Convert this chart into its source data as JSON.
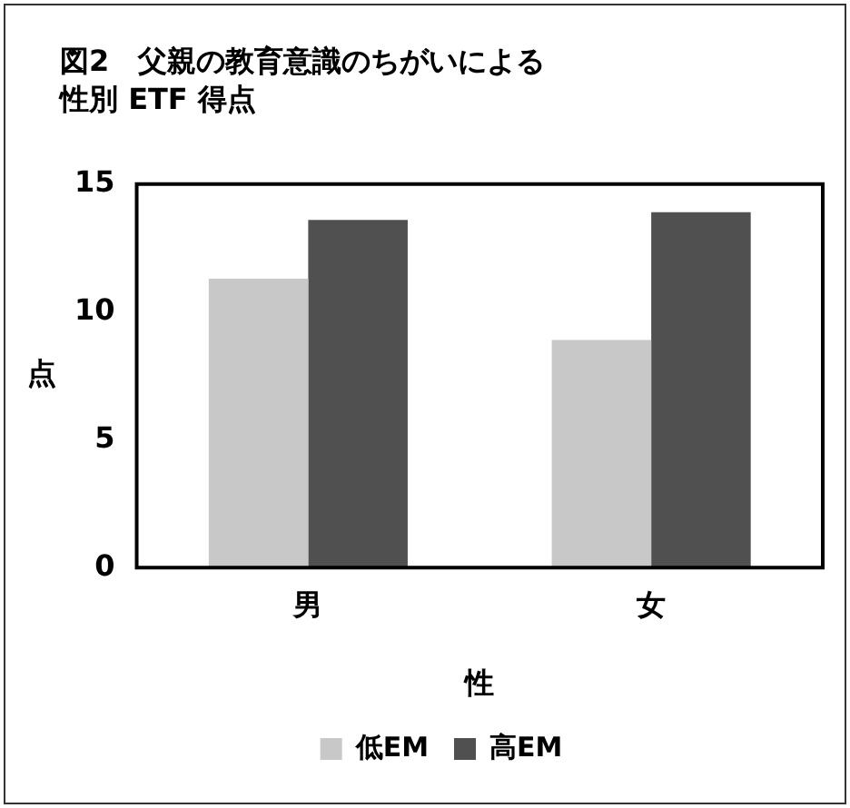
{
  "chart_data": {
    "type": "bar",
    "title": "図2　父親の教育意識のちがいによる",
    "subtitle": "性別 ETF 得点",
    "xlabel": "性",
    "ylabel": "点",
    "categories": [
      "男",
      "女"
    ],
    "series": [
      {
        "name": "低EM",
        "color": "#c8c8c8",
        "values": [
          11.3,
          8.9
        ]
      },
      {
        "name": "高EM",
        "color": "#505050",
        "values": [
          13.6,
          13.9
        ]
      }
    ],
    "ylim": [
      0,
      15
    ],
    "yticks": [
      0,
      5,
      10,
      15
    ],
    "grid": false,
    "legend": "bottom"
  }
}
